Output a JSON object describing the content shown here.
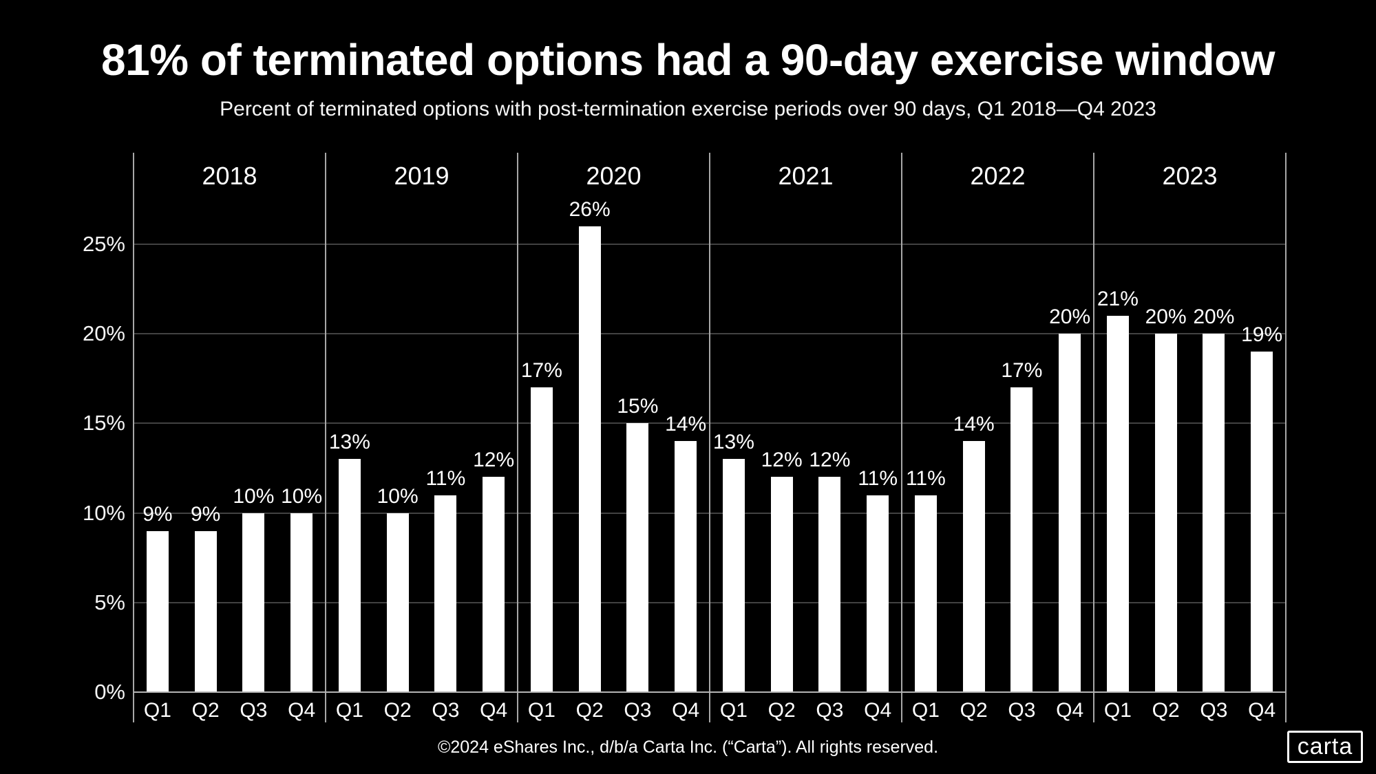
{
  "footer": {
    "copyright": "©2024 eShares Inc., d/b/a Carta Inc. (“Carta”). All rights reserved.",
    "logo_text": "carta"
  },
  "colors": {
    "background": "#000000",
    "bar": "#ffffff",
    "text": "#ffffff",
    "gridline": "#424242",
    "axis_line": "#a8a8a8"
  },
  "chart_data": {
    "type": "bar",
    "title": "81% of terminated options had a 90-day exercise window",
    "subtitle": "Percent of terminated options with post-termination exercise periods over 90 days, Q1 2018—Q4 2023",
    "unit": "%",
    "ylim": [
      0,
      30
    ],
    "ytick_values": [
      0,
      5,
      10,
      15,
      20,
      25
    ],
    "ytick_labels": [
      "0%",
      "5%",
      "10%",
      "15%",
      "20%",
      "25%"
    ],
    "grid": "horizontal-gridlines-with-vertical-year-separators",
    "legend": "none",
    "bar_color": "#ffffff",
    "categories": [
      "Q1",
      "Q2",
      "Q3",
      "Q4"
    ],
    "groups": [
      {
        "year": "2018",
        "values": [
          9,
          9,
          10,
          10
        ]
      },
      {
        "year": "2019",
        "values": [
          13,
          10,
          11,
          12
        ]
      },
      {
        "year": "2020",
        "values": [
          17,
          26,
          15,
          14
        ]
      },
      {
        "year": "2021",
        "values": [
          13,
          12,
          12,
          11
        ]
      },
      {
        "year": "2022",
        "values": [
          11,
          14,
          17,
          20
        ]
      },
      {
        "year": "2023",
        "values": [
          21,
          20,
          20,
          19
        ]
      }
    ]
  }
}
